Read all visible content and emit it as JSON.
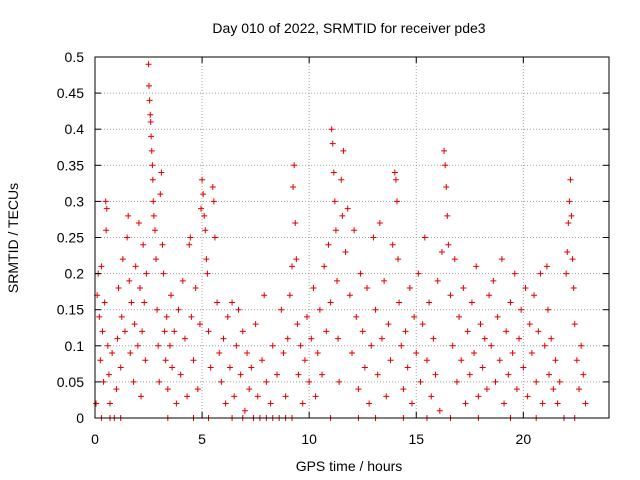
{
  "chart_data": {
    "type": "scatter",
    "title": "Day 010 of 2022, SRMTID for receiver pde3",
    "xlabel": "GPS time / hours",
    "ylabel": "SRMTID / TECUs",
    "xlim": [
      0,
      24
    ],
    "ylim": [
      0,
      0.5
    ],
    "grid": true,
    "marker": "+",
    "color": "#e00000",
    "x_ticks": [
      0,
      5,
      10,
      15,
      20
    ],
    "x_tick_labels": [
      "0",
      "5",
      "10",
      "15",
      "20"
    ],
    "y_ticks": [
      0,
      0.05,
      0.1,
      0.15,
      0.2,
      0.25,
      0.3,
      0.35,
      0.4,
      0.45,
      0.5
    ],
    "y_tick_labels": [
      "0",
      "0.05",
      "0.1",
      "0.15",
      "0.2",
      "0.25",
      "0.3",
      "0.35",
      "0.4",
      "0.45",
      "0.5"
    ],
    "series": [
      {
        "name": "SRMTID",
        "points": [
          [
            0.05,
            0.02
          ],
          [
            0.1,
            0.17
          ],
          [
            0.15,
            0.2
          ],
          [
            0.2,
            0.14
          ],
          [
            0.25,
            0.08
          ],
          [
            0.3,
            0.21
          ],
          [
            0.35,
            0.12
          ],
          [
            0.4,
            0.05
          ],
          [
            0.45,
            0.16
          ],
          [
            0.5,
            0.3
          ],
          [
            0.52,
            0.26
          ],
          [
            0.55,
            0.29
          ],
          [
            0.6,
            0.1
          ],
          [
            0.65,
            0.06
          ],
          [
            0.7,
            0.02
          ],
          [
            0.8,
            0.09
          ],
          [
            0.9,
            0.0
          ],
          [
            1.0,
            0.04
          ],
          [
            1.05,
            0.11
          ],
          [
            1.1,
            0.18
          ],
          [
            1.2,
            0.07
          ],
          [
            1.25,
            0.14
          ],
          [
            1.3,
            0.22
          ],
          [
            1.4,
            0.12
          ],
          [
            1.5,
            0.25
          ],
          [
            1.55,
            0.28
          ],
          [
            1.6,
            0.19
          ],
          [
            1.65,
            0.09
          ],
          [
            1.7,
            0.16
          ],
          [
            1.8,
            0.05
          ],
          [
            1.85,
            0.13
          ],
          [
            1.9,
            0.21
          ],
          [
            2.0,
            0.1
          ],
          [
            2.05,
            0.27
          ],
          [
            2.1,
            0.18
          ],
          [
            2.15,
            0.03
          ],
          [
            2.2,
            0.12
          ],
          [
            2.25,
            0.24
          ],
          [
            2.3,
            0.16
          ],
          [
            2.35,
            0.08
          ],
          [
            2.4,
            0.2
          ],
          [
            2.5,
            0.49
          ],
          [
            2.52,
            0.46
          ],
          [
            2.55,
            0.44
          ],
          [
            2.58,
            0.42
          ],
          [
            2.6,
            0.41
          ],
          [
            2.62,
            0.39
          ],
          [
            2.65,
            0.37
          ],
          [
            2.68,
            0.35
          ],
          [
            2.7,
            0.33
          ],
          [
            2.72,
            0.3
          ],
          [
            2.75,
            0.28
          ],
          [
            2.8,
            0.26
          ],
          [
            2.85,
            0.22
          ],
          [
            2.9,
            0.15
          ],
          [
            2.95,
            0.1
          ],
          [
            3.0,
            0.05
          ],
          [
            3.05,
            0.31
          ],
          [
            3.1,
            0.34
          ],
          [
            3.15,
            0.24
          ],
          [
            3.2,
            0.2
          ],
          [
            3.25,
            0.12
          ],
          [
            3.3,
            0.08
          ],
          [
            3.35,
            0.14
          ],
          [
            3.4,
            0.04
          ],
          [
            3.5,
            0.1
          ],
          [
            3.55,
            0.17
          ],
          [
            3.6,
            0.07
          ],
          [
            3.7,
            0.12
          ],
          [
            3.8,
            0.02
          ],
          [
            3.9,
            0.15
          ],
          [
            4.0,
            0.06
          ],
          [
            4.1,
            0.19
          ],
          [
            4.2,
            0.11
          ],
          [
            4.3,
            0.03
          ],
          [
            4.4,
            0.24
          ],
          [
            4.45,
            0.25
          ],
          [
            4.5,
            0.14
          ],
          [
            4.6,
            0.08
          ],
          [
            4.7,
            0.18
          ],
          [
            4.8,
            0.04
          ],
          [
            4.9,
            0.13
          ],
          [
            4.95,
            0.29
          ],
          [
            5.0,
            0.33
          ],
          [
            5.05,
            0.31
          ],
          [
            5.1,
            0.28
          ],
          [
            5.15,
            0.26
          ],
          [
            5.2,
            0.22
          ],
          [
            5.25,
            0.2
          ],
          [
            5.3,
            0.12
          ],
          [
            5.4,
            0.07
          ],
          [
            5.5,
            0.32
          ],
          [
            5.55,
            0.3
          ],
          [
            5.6,
            0.25
          ],
          [
            5.7,
            0.16
          ],
          [
            5.8,
            0.09
          ],
          [
            5.9,
            0.05
          ],
          [
            6.0,
            0.11
          ],
          [
            6.1,
            0.02
          ],
          [
            6.2,
            0.14
          ],
          [
            6.3,
            0.07
          ],
          [
            6.4,
            0.16
          ],
          [
            6.5,
            0.03
          ],
          [
            6.6,
            0.1
          ],
          [
            6.7,
            0.15
          ],
          [
            6.8,
            0.06
          ],
          [
            6.9,
            0.12
          ],
          [
            7.0,
            0.01
          ],
          [
            7.1,
            0.09
          ],
          [
            7.2,
            0.04
          ],
          [
            7.3,
            0.07
          ],
          [
            7.5,
            0.13
          ],
          [
            7.6,
            0.03
          ],
          [
            7.8,
            0.08
          ],
          [
            7.9,
            0.17
          ],
          [
            8.0,
            0.05
          ],
          [
            8.2,
            0.02
          ],
          [
            8.3,
            0.1
          ],
          [
            8.5,
            0.06
          ],
          [
            8.7,
            0.15
          ],
          [
            8.8,
            0.09
          ],
          [
            8.9,
            0.03
          ],
          [
            9.0,
            0.11
          ],
          [
            9.1,
            0.17
          ],
          [
            9.2,
            0.21
          ],
          [
            9.25,
            0.32
          ],
          [
            9.3,
            0.35
          ],
          [
            9.35,
            0.27
          ],
          [
            9.4,
            0.22
          ],
          [
            9.45,
            0.13
          ],
          [
            9.5,
            0.06
          ],
          [
            9.6,
            0.1
          ],
          [
            9.7,
            0.02
          ],
          [
            9.8,
            0.08
          ],
          [
            9.9,
            0.14
          ],
          [
            10.0,
            0.05
          ],
          [
            10.1,
            0.11
          ],
          [
            10.2,
            0.18
          ],
          [
            10.3,
            0.03
          ],
          [
            10.4,
            0.09
          ],
          [
            10.5,
            0.15
          ],
          [
            10.6,
            0.06
          ],
          [
            10.7,
            0.21
          ],
          [
            10.8,
            0.12
          ],
          [
            10.9,
            0.24
          ],
          [
            11.0,
            0.16
          ],
          [
            11.05,
            0.4
          ],
          [
            11.1,
            0.38
          ],
          [
            11.15,
            0.34
          ],
          [
            11.2,
            0.3
          ],
          [
            11.25,
            0.26
          ],
          [
            11.3,
            0.19
          ],
          [
            11.35,
            0.11
          ],
          [
            11.4,
            0.05
          ],
          [
            11.5,
            0.33
          ],
          [
            11.55,
            0.28
          ],
          [
            11.6,
            0.37
          ],
          [
            11.7,
            0.23
          ],
          [
            11.8,
            0.29
          ],
          [
            11.9,
            0.17
          ],
          [
            12.0,
            0.09
          ],
          [
            12.1,
            0.26
          ],
          [
            12.2,
            0.14
          ],
          [
            12.3,
            0.04
          ],
          [
            12.4,
            0.2
          ],
          [
            12.5,
            0.12
          ],
          [
            12.6,
            0.07
          ],
          [
            12.7,
            0.18
          ],
          [
            12.8,
            0.02
          ],
          [
            12.9,
            0.1
          ],
          [
            13.0,
            0.25
          ],
          [
            13.1,
            0.15
          ],
          [
            13.2,
            0.06
          ],
          [
            13.3,
            0.27
          ],
          [
            13.4,
            0.11
          ],
          [
            13.5,
            0.19
          ],
          [
            13.6,
            0.03
          ],
          [
            13.7,
            0.13
          ],
          [
            13.8,
            0.08
          ],
          [
            13.9,
            0.24
          ],
          [
            14.0,
            0.34
          ],
          [
            14.05,
            0.33
          ],
          [
            14.1,
            0.3
          ],
          [
            14.15,
            0.22
          ],
          [
            14.2,
            0.16
          ],
          [
            14.3,
            0.1
          ],
          [
            14.4,
            0.04
          ],
          [
            14.5,
            0.12
          ],
          [
            14.6,
            0.07
          ],
          [
            14.7,
            0.18
          ],
          [
            14.8,
            0.02
          ],
          [
            14.9,
            0.14
          ],
          [
            15.0,
            0.09
          ],
          [
            15.1,
            0.2
          ],
          [
            15.2,
            0.05
          ],
          [
            15.3,
            0.13
          ],
          [
            15.4,
            0.25
          ],
          [
            15.5,
            0.08
          ],
          [
            15.6,
            0.16
          ],
          [
            15.7,
            0.03
          ],
          [
            15.8,
            0.11
          ],
          [
            15.9,
            0.06
          ],
          [
            16.0,
            0.19
          ],
          [
            16.1,
            0.01
          ],
          [
            16.2,
            0.23
          ],
          [
            16.3,
            0.37
          ],
          [
            16.35,
            0.35
          ],
          [
            16.4,
            0.32
          ],
          [
            16.45,
            0.28
          ],
          [
            16.5,
            0.24
          ],
          [
            16.6,
            0.17
          ],
          [
            16.7,
            0.1
          ],
          [
            16.8,
            0.22
          ],
          [
            16.9,
            0.05
          ],
          [
            17.0,
            0.14
          ],
          [
            17.1,
            0.08
          ],
          [
            17.2,
            0.18
          ],
          [
            17.3,
            0.02
          ],
          [
            17.4,
            0.12
          ],
          [
            17.5,
            0.06
          ],
          [
            17.6,
            0.16
          ],
          [
            17.7,
            0.09
          ],
          [
            17.8,
            0.21
          ],
          [
            17.9,
            0.03
          ],
          [
            18.0,
            0.13
          ],
          [
            18.1,
            0.07
          ],
          [
            18.2,
            0.11
          ],
          [
            18.3,
            0.04
          ],
          [
            18.4,
            0.17
          ],
          [
            18.5,
            0.1
          ],
          [
            18.6,
            0.19
          ],
          [
            18.7,
            0.05
          ],
          [
            18.8,
            0.14
          ],
          [
            18.9,
            0.08
          ],
          [
            19.0,
            0.22
          ],
          [
            19.1,
            0.02
          ],
          [
            19.2,
            0.12
          ],
          [
            19.3,
            0.06
          ],
          [
            19.4,
            0.16
          ],
          [
            19.5,
            0.09
          ],
          [
            19.6,
            0.2
          ],
          [
            19.7,
            0.04
          ],
          [
            19.8,
            0.11
          ],
          [
            19.9,
            0.15
          ],
          [
            20.0,
            0.07
          ],
          [
            20.1,
            0.18
          ],
          [
            20.2,
            0.03
          ],
          [
            20.3,
            0.13
          ],
          [
            20.4,
            0.09
          ],
          [
            20.5,
            0.17
          ],
          [
            20.6,
            0.05
          ],
          [
            20.7,
            0.12
          ],
          [
            20.8,
            0.2
          ],
          [
            20.9,
            0.02
          ],
          [
            21.0,
            0.1
          ],
          [
            21.1,
            0.21
          ],
          [
            21.15,
            0.15
          ],
          [
            21.2,
            0.06
          ],
          [
            21.3,
            0.11
          ],
          [
            21.4,
            0.04
          ],
          [
            21.5,
            0.08
          ],
          [
            21.6,
            0.02
          ],
          [
            21.7,
            0.05
          ],
          [
            22.0,
            0.2
          ],
          [
            22.05,
            0.23
          ],
          [
            22.1,
            0.27
          ],
          [
            22.15,
            0.3
          ],
          [
            22.2,
            0.33
          ],
          [
            22.25,
            0.28
          ],
          [
            22.3,
            0.22
          ],
          [
            22.35,
            0.18
          ],
          [
            22.4,
            0.13
          ],
          [
            22.5,
            0.08
          ],
          [
            22.6,
            0.04
          ],
          [
            22.7,
            0.1
          ],
          [
            22.8,
            0.06
          ],
          [
            22.9,
            0.02
          ],
          [
            0.3,
            0.0
          ],
          [
            0.7,
            0.0
          ],
          [
            1.2,
            0.0
          ],
          [
            3.4,
            0.0
          ],
          [
            4.6,
            0.0
          ],
          [
            5.3,
            0.0
          ],
          [
            6.4,
            0.0
          ],
          [
            6.9,
            0.0
          ],
          [
            7.4,
            0.0
          ],
          [
            7.7,
            0.0
          ],
          [
            8.0,
            0.0
          ],
          [
            8.3,
            0.0
          ],
          [
            8.6,
            0.0
          ],
          [
            8.9,
            0.0
          ],
          [
            9.2,
            0.0
          ],
          [
            11.0,
            0.0
          ],
          [
            12.3,
            0.0
          ],
          [
            13.1,
            0.0
          ],
          [
            14.4,
            0.0
          ],
          [
            15.5,
            0.0
          ],
          [
            16.6,
            0.0
          ],
          [
            17.9,
            0.0
          ],
          [
            19.4,
            0.0
          ],
          [
            20.6,
            0.0
          ],
          [
            21.9,
            0.0
          ],
          [
            22.4,
            0.0
          ]
        ]
      }
    ]
  }
}
